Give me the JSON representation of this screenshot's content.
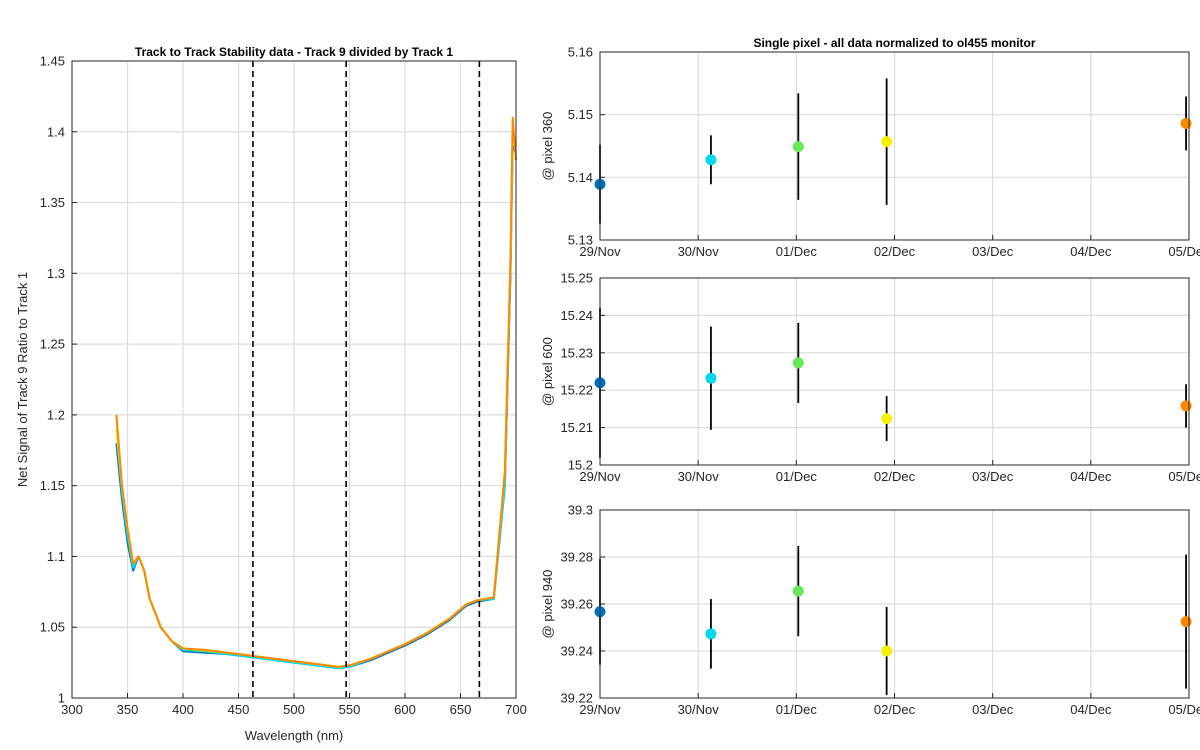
{
  "chart_data": [
    {
      "type": "line",
      "title": "Track to Track Stability data - Track 9 divided by Track 1",
      "xlabel": "Wavelength (nm)",
      "ylabel": "Net Signal of Track 9 Ratio to Track 1",
      "xlim": [
        300,
        700
      ],
      "ylim": [
        1,
        1.45
      ],
      "xticks": [
        "300",
        "350",
        "400",
        "450",
        "500",
        "550",
        "600",
        "650",
        "700"
      ],
      "yticks": [
        "1",
        "1.05",
        "1.1",
        "1.15",
        "1.2",
        "1.25",
        "1.3",
        "1.35",
        "1.4",
        "1.45"
      ],
      "grid": true,
      "vlines": [
        463,
        547,
        667
      ],
      "series": [
        {
          "color": "#0072bd",
          "x": [
            340,
            345,
            350,
            355,
            360,
            365,
            370,
            375,
            380,
            390,
            400,
            420,
            440,
            460,
            480,
            500,
            520,
            540,
            550,
            570,
            600,
            620,
            640,
            655,
            665,
            680,
            690,
            695,
            697,
            700
          ],
          "y": [
            1.18,
            1.14,
            1.11,
            1.09,
            1.1,
            1.09,
            1.07,
            1.06,
            1.05,
            1.04,
            1.033,
            1.032,
            1.031,
            1.029,
            1.027,
            1.025,
            1.023,
            1.021,
            1.022,
            1.027,
            1.037,
            1.045,
            1.055,
            1.065,
            1.068,
            1.07,
            1.15,
            1.3,
            1.39,
            1.385
          ]
        },
        {
          "color": "#00d8f0",
          "x": [
            340,
            345,
            350,
            355,
            360,
            365,
            370,
            375,
            380,
            390,
            400,
            420,
            440,
            460,
            480,
            500,
            520,
            540,
            550,
            570,
            600,
            620,
            640,
            655,
            665,
            680,
            690,
            695,
            697,
            700
          ],
          "y": [
            1.19,
            1.145,
            1.115,
            1.092,
            1.1,
            1.09,
            1.07,
            1.06,
            1.05,
            1.04,
            1.034,
            1.033,
            1.031,
            1.029,
            1.027,
            1.025,
            1.023,
            1.021,
            1.022,
            1.028,
            1.038,
            1.046,
            1.056,
            1.066,
            1.069,
            1.07,
            1.15,
            1.31,
            1.4,
            1.39
          ]
        },
        {
          "color": "#66e85a",
          "x": [
            340,
            345,
            350,
            355,
            360,
            365,
            370,
            375,
            380,
            390,
            400,
            420,
            440,
            460,
            480,
            500,
            520,
            540,
            550,
            570,
            600,
            620,
            640,
            655,
            665,
            680,
            690,
            695,
            697,
            700
          ],
          "y": [
            1.2,
            1.15,
            1.12,
            1.095,
            1.1,
            1.09,
            1.07,
            1.06,
            1.05,
            1.04,
            1.035,
            1.033,
            1.032,
            1.03,
            1.028,
            1.026,
            1.024,
            1.022,
            1.023,
            1.028,
            1.038,
            1.046,
            1.056,
            1.066,
            1.069,
            1.071,
            1.16,
            1.31,
            1.4,
            1.39
          ]
        },
        {
          "color": "#f5f000",
          "x": [
            340,
            345,
            350,
            355,
            360,
            365,
            370,
            375,
            380,
            390,
            400,
            420,
            440,
            460,
            480,
            500,
            520,
            540,
            550,
            570,
            600,
            620,
            640,
            655,
            665,
            680,
            690,
            695,
            697,
            700
          ],
          "y": [
            1.19,
            1.15,
            1.12,
            1.095,
            1.1,
            1.09,
            1.07,
            1.06,
            1.05,
            1.04,
            1.035,
            1.034,
            1.032,
            1.03,
            1.028,
            1.026,
            1.024,
            1.022,
            1.023,
            1.028,
            1.038,
            1.046,
            1.056,
            1.066,
            1.069,
            1.071,
            1.16,
            1.31,
            1.4,
            1.39
          ]
        },
        {
          "color": "#ff8800",
          "x": [
            340,
            345,
            350,
            355,
            360,
            365,
            370,
            375,
            380,
            390,
            400,
            420,
            440,
            460,
            480,
            500,
            520,
            540,
            550,
            570,
            600,
            620,
            640,
            655,
            665,
            680,
            690,
            695,
            697,
            700
          ],
          "y": [
            1.2,
            1.15,
            1.12,
            1.095,
            1.1,
            1.09,
            1.07,
            1.06,
            1.05,
            1.04,
            1.035,
            1.034,
            1.032,
            1.03,
            1.028,
            1.026,
            1.024,
            1.022,
            1.023,
            1.028,
            1.038,
            1.046,
            1.056,
            1.066,
            1.069,
            1.071,
            1.16,
            1.31,
            1.41,
            1.38
          ]
        }
      ]
    },
    {
      "type": "scatter",
      "title": "Single pixel - all data normalized to ol455 monitor",
      "ylabel": "@ pixel 360",
      "xticks": [
        "29/Nov",
        "30/Nov",
        "01/Dec",
        "02/Dec",
        "03/Dec",
        "04/Dec",
        "05/Dec"
      ],
      "xlim": [
        0,
        6
      ],
      "ylim": [
        5.13,
        5.16
      ],
      "yticks": [
        "5.13",
        "5.14",
        "5.15",
        "5.16"
      ],
      "grid": true,
      "points": [
        {
          "x": 0.0,
          "y": 5.1389,
          "err": 0.0063,
          "color": "#0072bd"
        },
        {
          "x": 1.13,
          "y": 5.1428,
          "err": 0.0039,
          "color": "#00d8f0"
        },
        {
          "x": 2.02,
          "y": 5.1449,
          "err": 0.0085,
          "color": "#66e85a"
        },
        {
          "x": 2.92,
          "y": 5.1457,
          "err": 0.0101,
          "color": "#f5f000"
        },
        {
          "x": 5.97,
          "y": 5.1486,
          "err": 0.0043,
          "color": "#ff8800"
        }
      ]
    },
    {
      "type": "scatter",
      "ylabel": "@ pixel 600",
      "xticks": [
        "29/Nov",
        "30/Nov",
        "01/Dec",
        "02/Dec",
        "03/Dec",
        "04/Dec",
        "05/Dec"
      ],
      "xlim": [
        0,
        6
      ],
      "ylim": [
        15.2,
        15.25
      ],
      "yticks": [
        "15.2",
        "15.21",
        "15.22",
        "15.23",
        "15.24",
        "15.25"
      ],
      "grid": true,
      "points": [
        {
          "x": 0.0,
          "y": 15.222,
          "err": 0.02,
          "color": "#0072bd"
        },
        {
          "x": 1.13,
          "y": 15.2232,
          "err": 0.0138,
          "color": "#00d8f0"
        },
        {
          "x": 2.02,
          "y": 15.2273,
          "err": 0.0107,
          "color": "#66e85a"
        },
        {
          "x": 2.92,
          "y": 15.2124,
          "err": 0.006,
          "color": "#f5f000"
        },
        {
          "x": 5.97,
          "y": 15.2158,
          "err": 0.0058,
          "color": "#ff8800"
        }
      ]
    },
    {
      "type": "scatter",
      "ylabel": "@ pixel 940",
      "xticks": [
        "29/Nov",
        "30/Nov",
        "01/Dec",
        "02/Dec",
        "03/Dec",
        "04/Dec",
        "05/Dec"
      ],
      "xlim": [
        0,
        6
      ],
      "ylim": [
        39.22,
        39.3
      ],
      "yticks": [
        "39.22",
        "39.24",
        "39.26",
        "39.28",
        "39.3"
      ],
      "grid": true,
      "points": [
        {
          "x": 0.0,
          "y": 39.2567,
          "err": 0.0225,
          "color": "#0072bd"
        },
        {
          "x": 1.13,
          "y": 39.2473,
          "err": 0.0148,
          "color": "#00d8f0"
        },
        {
          "x": 2.02,
          "y": 39.2655,
          "err": 0.0192,
          "color": "#66e85a"
        },
        {
          "x": 2.92,
          "y": 39.24,
          "err": 0.0188,
          "color": "#f5f000"
        },
        {
          "x": 5.97,
          "y": 39.2525,
          "err": 0.0285,
          "color": "#ff8800"
        }
      ]
    }
  ]
}
